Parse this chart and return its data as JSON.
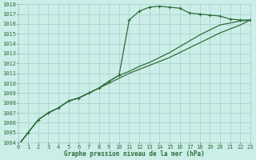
{
  "title": "Graphe pression niveau de la mer (hPa)",
  "bg_color": "#cceee8",
  "grid_color": "#aacccc",
  "line_color": "#2d6e3a",
  "x_min": 0,
  "x_max": 23,
  "y_min": 1004,
  "y_max": 1018,
  "series": [
    [
      1003.7,
      1005.0,
      1006.3,
      1007.0,
      1007.5,
      1008.2,
      1008.5,
      1009.0,
      1009.5,
      1010.2,
      1010.8,
      1016.4,
      1017.3,
      1017.7,
      1017.8,
      1017.7,
      1017.6,
      1017.1,
      1017.0,
      1016.9,
      1016.8,
      1016.5,
      1016.4,
      1016.4
    ],
    [
      1003.7,
      1005.0,
      1006.3,
      1007.0,
      1007.5,
      1008.2,
      1008.5,
      1009.0,
      1009.5,
      1010.2,
      1010.8,
      1011.2,
      1011.7,
      1012.1,
      1012.6,
      1013.1,
      1013.7,
      1014.3,
      1014.9,
      1015.4,
      1015.9,
      1016.1,
      1016.3,
      1016.4
    ],
    [
      1003.7,
      1005.0,
      1006.3,
      1007.0,
      1007.5,
      1008.2,
      1008.5,
      1009.0,
      1009.5,
      1010.0,
      1010.5,
      1011.0,
      1011.4,
      1011.8,
      1012.2,
      1012.6,
      1013.1,
      1013.6,
      1014.1,
      1014.6,
      1015.1,
      1015.5,
      1015.9,
      1016.4
    ]
  ],
  "x_ticks": [
    0,
    1,
    2,
    3,
    4,
    5,
    6,
    7,
    8,
    9,
    10,
    11,
    12,
    13,
    14,
    15,
    16,
    17,
    18,
    19,
    20,
    21,
    22,
    23
  ],
  "y_ticks": [
    1004,
    1005,
    1006,
    1007,
    1008,
    1009,
    1010,
    1011,
    1012,
    1013,
    1014,
    1015,
    1016,
    1017,
    1018
  ],
  "tick_fontsize": 5,
  "label_fontsize": 5.5,
  "linewidth": 0.9,
  "markersize": 3.5
}
